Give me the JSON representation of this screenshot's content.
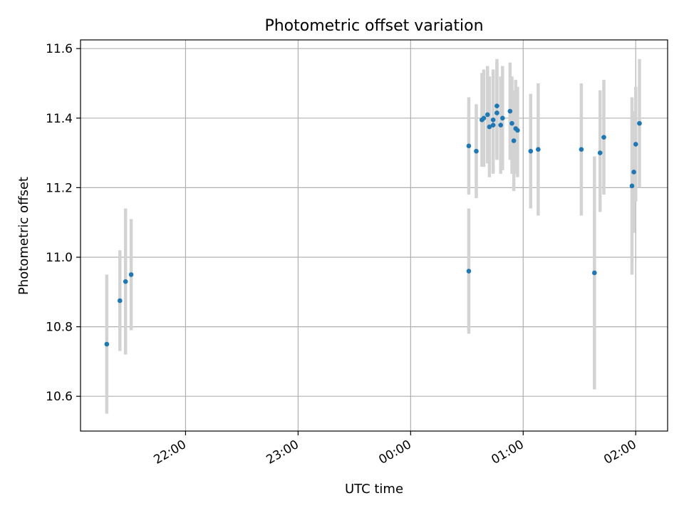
{
  "chart_data": {
    "type": "scatter",
    "title": "Photometric offset variation",
    "xlabel": "UTC time",
    "ylabel": "Photometric offset",
    "xlim": [
      "21:04",
      "02:17"
    ],
    "ylim": [
      10.5,
      11.625
    ],
    "x_ticks": [
      "22:00",
      "23:00",
      "00:00",
      "01:00",
      "02:00"
    ],
    "y_ticks": [
      "10.6",
      "10.8",
      "11.0",
      "11.2",
      "11.4",
      "11.6"
    ],
    "grid": true,
    "legend": "none",
    "colors": {
      "marker": "#1f77b4",
      "errorbar": "#d3d3d3",
      "grid": "#b0b0b0"
    },
    "points": [
      {
        "t": "21:18",
        "y": 10.75,
        "ylo": 10.55,
        "yhi": 10.95
      },
      {
        "t": "21:25",
        "y": 10.875,
        "ylo": 10.73,
        "yhi": 11.02
      },
      {
        "t": "21:28",
        "y": 10.93,
        "ylo": 10.72,
        "yhi": 11.14
      },
      {
        "t": "21:31",
        "y": 10.95,
        "ylo": 10.79,
        "yhi": 11.11
      },
      {
        "t": "00:31",
        "y": 10.96,
        "ylo": 10.78,
        "yhi": 11.14
      },
      {
        "t": "00:31",
        "y": 11.32,
        "ylo": 11.18,
        "yhi": 11.46
      },
      {
        "t": "00:35",
        "y": 11.305,
        "ylo": 11.17,
        "yhi": 11.44
      },
      {
        "t": "00:38",
        "y": 11.395,
        "ylo": 11.26,
        "yhi": 11.53
      },
      {
        "t": "00:39",
        "y": 11.4,
        "ylo": 11.26,
        "yhi": 11.54
      },
      {
        "t": "00:41",
        "y": 11.41,
        "ylo": 11.27,
        "yhi": 11.55
      },
      {
        "t": "00:42",
        "y": 11.375,
        "ylo": 11.23,
        "yhi": 11.52
      },
      {
        "t": "00:44",
        "y": 11.38,
        "ylo": 11.24,
        "yhi": 11.53
      },
      {
        "t": "00:44",
        "y": 11.395,
        "ylo": 11.25,
        "yhi": 11.54
      },
      {
        "t": "00:46",
        "y": 11.435,
        "ylo": 11.29,
        "yhi": 11.57
      },
      {
        "t": "00:46",
        "y": 11.415,
        "ylo": 11.28,
        "yhi": 11.56
      },
      {
        "t": "00:48",
        "y": 11.38,
        "ylo": 11.24,
        "yhi": 11.52
      },
      {
        "t": "00:49",
        "y": 11.4,
        "ylo": 11.25,
        "yhi": 11.55
      },
      {
        "t": "00:53",
        "y": 11.42,
        "ylo": 11.28,
        "yhi": 11.56
      },
      {
        "t": "00:54",
        "y": 11.385,
        "ylo": 11.24,
        "yhi": 11.52
      },
      {
        "t": "00:55",
        "y": 11.335,
        "ylo": 11.19,
        "yhi": 11.48
      },
      {
        "t": "00:56",
        "y": 11.37,
        "ylo": 11.24,
        "yhi": 11.51
      },
      {
        "t": "00:57",
        "y": 11.365,
        "ylo": 11.23,
        "yhi": 11.49
      },
      {
        "t": "01:04",
        "y": 11.305,
        "ylo": 11.14,
        "yhi": 11.47
      },
      {
        "t": "01:08",
        "y": 11.31,
        "ylo": 11.12,
        "yhi": 11.5
      },
      {
        "t": "01:31",
        "y": 11.31,
        "ylo": 11.12,
        "yhi": 11.5
      },
      {
        "t": "01:38",
        "y": 10.955,
        "ylo": 10.62,
        "yhi": 11.29
      },
      {
        "t": "01:41",
        "y": 11.3,
        "ylo": 11.13,
        "yhi": 11.48
      },
      {
        "t": "01:43",
        "y": 11.345,
        "ylo": 11.18,
        "yhi": 11.51
      },
      {
        "t": "01:58",
        "y": 11.205,
        "ylo": 10.95,
        "yhi": 11.46
      },
      {
        "t": "01:59",
        "y": 11.245,
        "ylo": 11.07,
        "yhi": 11.42
      },
      {
        "t": "02:00",
        "y": 11.325,
        "ylo": 11.16,
        "yhi": 11.49
      },
      {
        "t": "02:02",
        "y": 11.385,
        "ylo": 11.2,
        "yhi": 11.57
      }
    ]
  }
}
